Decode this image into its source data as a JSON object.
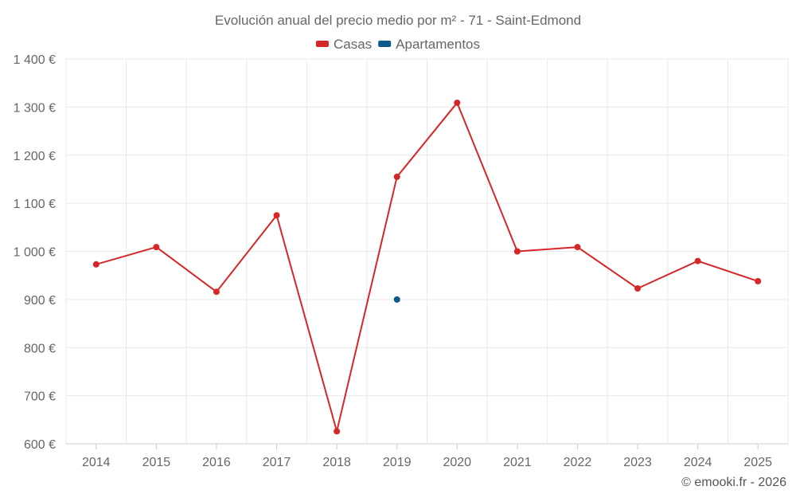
{
  "chart_data": {
    "type": "line",
    "title": "Evolución anual del precio medio por m² - 71 - Saint-Edmond",
    "categories": [
      "2014",
      "2015",
      "2016",
      "2017",
      "2018",
      "2019",
      "2020",
      "2021",
      "2022",
      "2023",
      "2024",
      "2025"
    ],
    "series": [
      {
        "name": "Casas",
        "color": "#d62728",
        "values": [
          973,
          1009,
          916,
          1075,
          626,
          1155,
          1309,
          1000,
          1009,
          923,
          980,
          938
        ]
      },
      {
        "name": "Apartamentos",
        "color": "#0e5a8a",
        "values": [
          null,
          null,
          null,
          null,
          null,
          900,
          null,
          null,
          null,
          null,
          null,
          null
        ]
      }
    ],
    "ylim": [
      600,
      1400
    ],
    "yticks": [
      600,
      700,
      800,
      900,
      1000,
      1100,
      1200,
      1300,
      1400
    ],
    "ytick_labels": [
      "600 €",
      "700 €",
      "800 €",
      "900 €",
      "1 000 €",
      "1 100 €",
      "1 200 €",
      "1 300 €",
      "1 400 €"
    ],
    "xlabel": "",
    "ylabel": "",
    "grid": true,
    "legend_position": "top-center"
  },
  "credit": "© emooki.fr - 2026"
}
